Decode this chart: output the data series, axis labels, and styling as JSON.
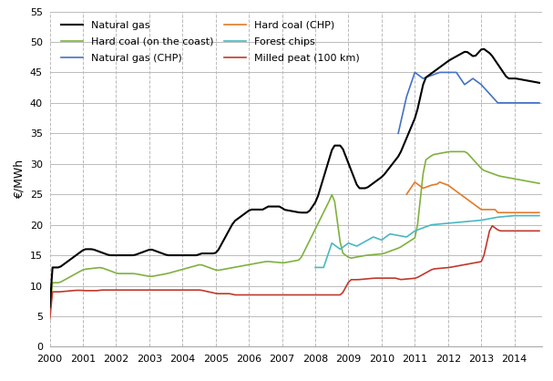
{
  "title": "",
  "ylabel": "€/MWh",
  "ylim": [
    0,
    55
  ],
  "yticks": [
    0,
    5,
    10,
    15,
    20,
    25,
    30,
    35,
    40,
    45,
    50,
    55
  ],
  "xlim_start": 2000.0,
  "xlim_end": 2014.83,
  "xtick_labels": [
    "2000",
    "2001",
    "2002",
    "2003",
    "2004",
    "2005",
    "2006",
    "2007",
    "2008",
    "2009",
    "2010",
    "2011",
    "2012",
    "2013",
    "2014"
  ],
  "series": {
    "Natural gas": {
      "color": "#000000",
      "linewidth": 1.5
    },
    "Hard coal (on the coast)": {
      "color": "#7fb13e",
      "linewidth": 1.2
    },
    "Natural gas (CHP)": {
      "color": "#4472c4",
      "linewidth": 1.2
    },
    "Hard coal (CHP)": {
      "color": "#e07b2a",
      "linewidth": 1.2
    },
    "Forest chips": {
      "color": "#4ab8c1",
      "linewidth": 1.2
    },
    "Milled peat (100 km)": {
      "color": "#c0392b",
      "linewidth": 1.2
    }
  },
  "legend_order": [
    "Natural gas",
    "Hard coal (on the coast)",
    "Natural gas (CHP)",
    "Hard coal (CHP)",
    "Forest chips",
    "Milled peat (100 km)"
  ],
  "bg_color": "#ffffff",
  "grid_color_h": "#bbbbbb",
  "grid_color_v": "#bbbbbb",
  "tick_fontsize": 8,
  "ylabel_fontsize": 9,
  "legend_fontsize": 8
}
